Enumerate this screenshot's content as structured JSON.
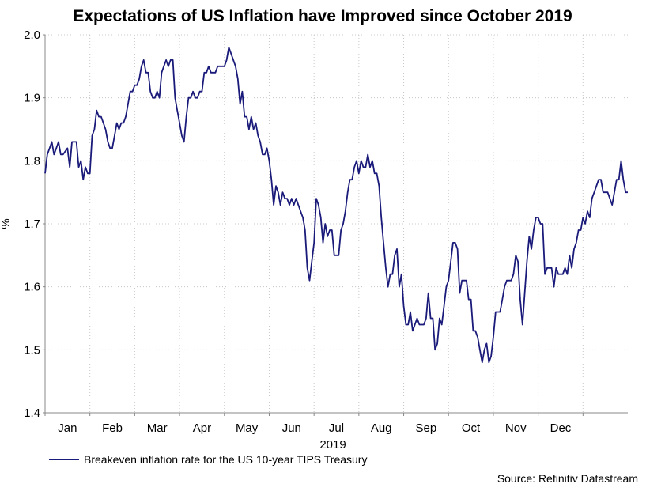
{
  "chart_data": {
    "type": "line",
    "title": "Expectations of US Inflation have Improved since October 2019",
    "ylabel": "%",
    "xlabel": "2019",
    "ylim": [
      1.4,
      2.0
    ],
    "yticks": [
      "1.4",
      "1.5",
      "1.6",
      "1.7",
      "1.8",
      "1.9",
      "2.0"
    ],
    "categories": [
      "Jan",
      "Feb",
      "Mar",
      "Apr",
      "May",
      "Jun",
      "Jul",
      "Aug",
      "Sep",
      "Oct",
      "Nov",
      "Dec"
    ],
    "grid": true,
    "legend_position": "bottom-left",
    "source": "Source: Refinitiv Datastream",
    "series": [
      {
        "name": "Breakeven inflation rate for the US 10-year TIPS Treasury",
        "color": "#1a1a7a",
        "points": [
          [
            0.0,
            1.78
          ],
          [
            0.05,
            1.81
          ],
          [
            0.1,
            1.82
          ],
          [
            0.15,
            1.83
          ],
          [
            0.2,
            1.81
          ],
          [
            0.25,
            1.82
          ],
          [
            0.3,
            1.83
          ],
          [
            0.35,
            1.81
          ],
          [
            0.4,
            1.81
          ],
          [
            0.5,
            1.82
          ],
          [
            0.55,
            1.79
          ],
          [
            0.6,
            1.83
          ],
          [
            0.7,
            1.83
          ],
          [
            0.75,
            1.79
          ],
          [
            0.8,
            1.8
          ],
          [
            0.85,
            1.77
          ],
          [
            0.9,
            1.79
          ],
          [
            0.95,
            1.78
          ],
          [
            1.0,
            1.78
          ],
          [
            1.05,
            1.84
          ],
          [
            1.1,
            1.85
          ],
          [
            1.15,
            1.88
          ],
          [
            1.2,
            1.87
          ],
          [
            1.25,
            1.87
          ],
          [
            1.3,
            1.86
          ],
          [
            1.35,
            1.85
          ],
          [
            1.4,
            1.83
          ],
          [
            1.45,
            1.82
          ],
          [
            1.5,
            1.82
          ],
          [
            1.55,
            1.84
          ],
          [
            1.6,
            1.86
          ],
          [
            1.65,
            1.85
          ],
          [
            1.7,
            1.86
          ],
          [
            1.75,
            1.86
          ],
          [
            1.8,
            1.87
          ],
          [
            1.85,
            1.89
          ],
          [
            1.9,
            1.91
          ],
          [
            1.95,
            1.91
          ],
          [
            2.0,
            1.92
          ],
          [
            2.05,
            1.92
          ],
          [
            2.1,
            1.93
          ],
          [
            2.15,
            1.95
          ],
          [
            2.2,
            1.96
          ],
          [
            2.25,
            1.94
          ],
          [
            2.3,
            1.94
          ],
          [
            2.35,
            1.91
          ],
          [
            2.4,
            1.9
          ],
          [
            2.45,
            1.9
          ],
          [
            2.5,
            1.91
          ],
          [
            2.55,
            1.9
          ],
          [
            2.6,
            1.94
          ],
          [
            2.65,
            1.95
          ],
          [
            2.7,
            1.96
          ],
          [
            2.75,
            1.95
          ],
          [
            2.8,
            1.96
          ],
          [
            2.85,
            1.96
          ],
          [
            2.9,
            1.9
          ],
          [
            2.95,
            1.88
          ],
          [
            3.0,
            1.86
          ],
          [
            3.05,
            1.84
          ],
          [
            3.1,
            1.83
          ],
          [
            3.15,
            1.87
          ],
          [
            3.2,
            1.9
          ],
          [
            3.25,
            1.9
          ],
          [
            3.3,
            1.91
          ],
          [
            3.35,
            1.9
          ],
          [
            3.4,
            1.9
          ],
          [
            3.45,
            1.91
          ],
          [
            3.5,
            1.91
          ],
          [
            3.55,
            1.94
          ],
          [
            3.6,
            1.94
          ],
          [
            3.65,
            1.95
          ],
          [
            3.7,
            1.94
          ],
          [
            3.75,
            1.94
          ],
          [
            3.8,
            1.94
          ],
          [
            3.85,
            1.95
          ],
          [
            3.9,
            1.95
          ],
          [
            4.0,
            1.95
          ],
          [
            4.05,
            1.96
          ],
          [
            4.1,
            1.98
          ],
          [
            4.15,
            1.97
          ],
          [
            4.2,
            1.96
          ],
          [
            4.25,
            1.95
          ],
          [
            4.3,
            1.93
          ],
          [
            4.35,
            1.89
          ],
          [
            4.4,
            1.91
          ],
          [
            4.45,
            1.87
          ],
          [
            4.5,
            1.87
          ],
          [
            4.55,
            1.85
          ],
          [
            4.6,
            1.87
          ],
          [
            4.65,
            1.85
          ],
          [
            4.7,
            1.86
          ],
          [
            4.75,
            1.84
          ],
          [
            4.8,
            1.83
          ],
          [
            4.85,
            1.81
          ],
          [
            4.9,
            1.81
          ],
          [
            4.95,
            1.82
          ],
          [
            5.0,
            1.8
          ],
          [
            5.05,
            1.77
          ],
          [
            5.1,
            1.73
          ],
          [
            5.15,
            1.76
          ],
          [
            5.2,
            1.75
          ],
          [
            5.25,
            1.73
          ],
          [
            5.3,
            1.75
          ],
          [
            5.35,
            1.74
          ],
          [
            5.4,
            1.74
          ],
          [
            5.45,
            1.73
          ],
          [
            5.5,
            1.74
          ],
          [
            5.55,
            1.73
          ],
          [
            5.6,
            1.74
          ],
          [
            5.65,
            1.73
          ],
          [
            5.7,
            1.72
          ],
          [
            5.75,
            1.71
          ],
          [
            5.8,
            1.69
          ],
          [
            5.85,
            1.63
          ],
          [
            5.9,
            1.61
          ],
          [
            5.95,
            1.64
          ],
          [
            6.0,
            1.67
          ],
          [
            6.05,
            1.74
          ],
          [
            6.1,
            1.73
          ],
          [
            6.15,
            1.71
          ],
          [
            6.2,
            1.67
          ],
          [
            6.25,
            1.7
          ],
          [
            6.3,
            1.68
          ],
          [
            6.35,
            1.69
          ],
          [
            6.4,
            1.69
          ],
          [
            6.45,
            1.65
          ],
          [
            6.5,
            1.65
          ],
          [
            6.55,
            1.65
          ],
          [
            6.6,
            1.69
          ],
          [
            6.65,
            1.7
          ],
          [
            6.7,
            1.72
          ],
          [
            6.75,
            1.75
          ],
          [
            6.8,
            1.77
          ],
          [
            6.85,
            1.77
          ],
          [
            6.9,
            1.79
          ],
          [
            6.95,
            1.8
          ],
          [
            7.0,
            1.78
          ],
          [
            7.05,
            1.8
          ],
          [
            7.1,
            1.79
          ],
          [
            7.15,
            1.79
          ],
          [
            7.2,
            1.81
          ],
          [
            7.25,
            1.79
          ],
          [
            7.3,
            1.8
          ],
          [
            7.35,
            1.78
          ],
          [
            7.4,
            1.78
          ],
          [
            7.45,
            1.76
          ],
          [
            7.5,
            1.71
          ],
          [
            7.55,
            1.67
          ],
          [
            7.6,
            1.63
          ],
          [
            7.65,
            1.6
          ],
          [
            7.7,
            1.62
          ],
          [
            7.75,
            1.62
          ],
          [
            7.8,
            1.65
          ],
          [
            7.85,
            1.66
          ],
          [
            7.9,
            1.6
          ],
          [
            7.95,
            1.62
          ],
          [
            8.0,
            1.57
          ],
          [
            8.05,
            1.54
          ],
          [
            8.1,
            1.54
          ],
          [
            8.15,
            1.56
          ],
          [
            8.2,
            1.53
          ],
          [
            8.25,
            1.54
          ],
          [
            8.3,
            1.55
          ],
          [
            8.35,
            1.54
          ],
          [
            8.4,
            1.54
          ],
          [
            8.45,
            1.54
          ],
          [
            8.5,
            1.55
          ],
          [
            8.55,
            1.59
          ],
          [
            8.6,
            1.55
          ],
          [
            8.65,
            1.55
          ],
          [
            8.7,
            1.5
          ],
          [
            8.75,
            1.51
          ],
          [
            8.8,
            1.55
          ],
          [
            8.85,
            1.54
          ],
          [
            8.9,
            1.57
          ],
          [
            8.95,
            1.6
          ],
          [
            9.0,
            1.61
          ],
          [
            9.05,
            1.64
          ],
          [
            9.1,
            1.67
          ],
          [
            9.15,
            1.67
          ],
          [
            9.2,
            1.66
          ],
          [
            9.25,
            1.59
          ],
          [
            9.3,
            1.61
          ],
          [
            9.35,
            1.61
          ],
          [
            9.4,
            1.61
          ],
          [
            9.45,
            1.58
          ],
          [
            9.5,
            1.58
          ],
          [
            9.55,
            1.53
          ],
          [
            9.6,
            1.53
          ],
          [
            9.65,
            1.52
          ],
          [
            9.7,
            1.5
          ],
          [
            9.75,
            1.48
          ],
          [
            9.8,
            1.5
          ],
          [
            9.85,
            1.51
          ],
          [
            9.9,
            1.48
          ],
          [
            9.95,
            1.49
          ],
          [
            10.0,
            1.52
          ],
          [
            10.05,
            1.56
          ],
          [
            10.1,
            1.56
          ],
          [
            10.15,
            1.56
          ],
          [
            10.2,
            1.58
          ],
          [
            10.25,
            1.6
          ],
          [
            10.3,
            1.61
          ],
          [
            10.35,
            1.61
          ],
          [
            10.4,
            1.61
          ],
          [
            10.45,
            1.62
          ],
          [
            10.5,
            1.65
          ],
          [
            10.55,
            1.64
          ],
          [
            10.6,
            1.58
          ],
          [
            10.65,
            1.54
          ],
          [
            10.7,
            1.59
          ],
          [
            10.75,
            1.64
          ],
          [
            10.8,
            1.68
          ],
          [
            10.85,
            1.66
          ],
          [
            10.9,
            1.69
          ],
          [
            10.95,
            1.71
          ],
          [
            11.0,
            1.71
          ],
          [
            11.05,
            1.7
          ],
          [
            11.1,
            1.7
          ],
          [
            11.15,
            1.62
          ],
          [
            11.2,
            1.63
          ],
          [
            11.25,
            1.63
          ],
          [
            11.3,
            1.63
          ],
          [
            11.35,
            1.6
          ],
          [
            11.4,
            1.63
          ],
          [
            11.45,
            1.62
          ],
          [
            11.5,
            1.62
          ],
          [
            11.55,
            1.62
          ],
          [
            11.6,
            1.63
          ],
          [
            11.65,
            1.62
          ],
          [
            11.7,
            1.65
          ],
          [
            11.75,
            1.63
          ],
          [
            11.8,
            1.66
          ],
          [
            11.85,
            1.67
          ],
          [
            11.9,
            1.69
          ],
          [
            11.95,
            1.69
          ],
          [
            12.0,
            1.71
          ],
          [
            12.05,
            1.7
          ],
          [
            12.1,
            1.72
          ],
          [
            12.15,
            1.71
          ],
          [
            12.2,
            1.74
          ],
          [
            12.25,
            1.75
          ],
          [
            12.3,
            1.76
          ],
          [
            12.35,
            1.77
          ],
          [
            12.4,
            1.77
          ],
          [
            12.45,
            1.75
          ],
          [
            12.5,
            1.75
          ],
          [
            12.55,
            1.75
          ],
          [
            12.6,
            1.74
          ],
          [
            12.65,
            1.73
          ],
          [
            12.7,
            1.75
          ],
          [
            12.75,
            1.77
          ],
          [
            12.8,
            1.77
          ],
          [
            12.85,
            1.8
          ],
          [
            12.9,
            1.77
          ],
          [
            12.95,
            1.75
          ],
          [
            13.0,
            1.75
          ]
        ]
      }
    ]
  }
}
